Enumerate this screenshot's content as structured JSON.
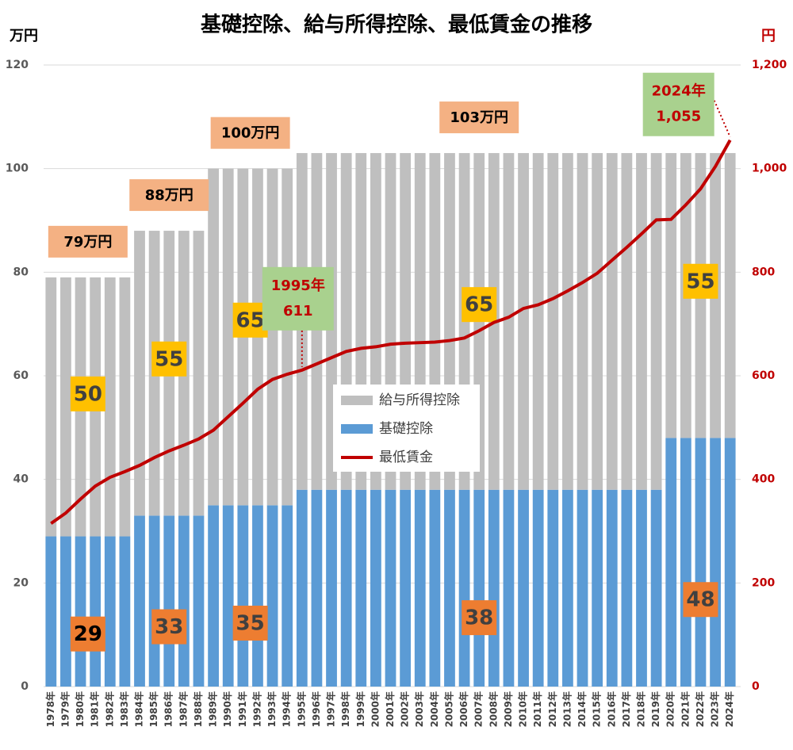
{
  "chart_data": {
    "type": "stacked-bar-line",
    "title": "基礎控除、給与所得控除、最低賃金の推移",
    "y_label": "万円",
    "y2_label": "円",
    "categories": [
      "1978年",
      "1979年",
      "1980年",
      "1981年",
      "1982年",
      "1983年",
      "1984年",
      "1985年",
      "1986年",
      "1987年",
      "1988年",
      "1989年",
      "1990年",
      "1991年",
      "1992年",
      "1993年",
      "1994年",
      "1995年",
      "1996年",
      "1997年",
      "1998年",
      "1999年",
      "2000年",
      "2001年",
      "2002年",
      "2003年",
      "2004年",
      "2005年",
      "2006年",
      "2007年",
      "2008年",
      "2009年",
      "2010年",
      "2011年",
      "2012年",
      "2013年",
      "2014年",
      "2015年",
      "2016年",
      "2017年",
      "2018年",
      "2019年",
      "2020年",
      "2021年",
      "2022年",
      "2023年",
      "2024年"
    ],
    "series": [
      {
        "name": "基礎控除",
        "color": "#5b9bd5",
        "values": [
          29,
          29,
          29,
          29,
          29,
          29,
          33,
          33,
          33,
          33,
          33,
          35,
          35,
          35,
          35,
          35,
          35,
          38,
          38,
          38,
          38,
          38,
          38,
          38,
          38,
          38,
          38,
          38,
          38,
          38,
          38,
          38,
          38,
          38,
          38,
          38,
          38,
          38,
          38,
          38,
          38,
          38,
          48,
          48,
          48,
          48,
          48
        ]
      },
      {
        "name": "給与所得控除",
        "color": "#bfbfbf",
        "values": [
          50,
          50,
          50,
          50,
          50,
          50,
          55,
          55,
          55,
          55,
          55,
          65,
          65,
          65,
          65,
          65,
          65,
          65,
          65,
          65,
          65,
          65,
          65,
          65,
          65,
          65,
          65,
          65,
          65,
          65,
          65,
          65,
          65,
          65,
          65,
          65,
          65,
          65,
          65,
          65,
          65,
          65,
          55,
          55,
          55,
          55,
          55
        ]
      },
      {
        "name": "最低賃金",
        "color": "#c00000",
        "axis": "y2",
        "values": [
          315,
          335,
          362,
          387,
          404,
          415,
          427,
          442,
          455,
          466,
          478,
          495,
          521,
          547,
          574,
          593,
          603,
          611,
          623,
          635,
          647,
          653,
          656,
          661,
          663,
          664,
          665,
          668,
          673,
          687,
          703,
          713,
          730,
          737,
          749,
          764,
          780,
          798,
          823,
          848,
          874,
          901,
          902,
          930,
          961,
          1004,
          1055
        ],
        "value_labels": [
          null,
          null,
          null,
          null,
          null,
          null,
          null,
          null,
          null,
          null,
          null,
          null,
          null,
          null,
          null,
          null,
          null,
          "611",
          null,
          null,
          null,
          null,
          null,
          null,
          null,
          null,
          null,
          null,
          null,
          null,
          null,
          null,
          null,
          null,
          null,
          null,
          null,
          null,
          null,
          null,
          null,
          null,
          null,
          null,
          null,
          null,
          "1,055"
        ]
      }
    ],
    "annotations": [
      "79万円",
      "88万円",
      "100万円",
      "103万円"
    ],
    "ylim": [
      0,
      120
    ],
    "yticks": [
      0,
      20,
      40,
      60,
      80,
      100,
      120
    ],
    "y2lim": [
      0,
      1200
    ],
    "y2ticks": [
      0,
      200,
      400,
      600,
      800,
      {
        "value": 1000,
        "label": "1,000"
      },
      {
        "value": 1200,
        "label": "1,200"
      }
    ],
    "grid": true,
    "legend": "center"
  }
}
